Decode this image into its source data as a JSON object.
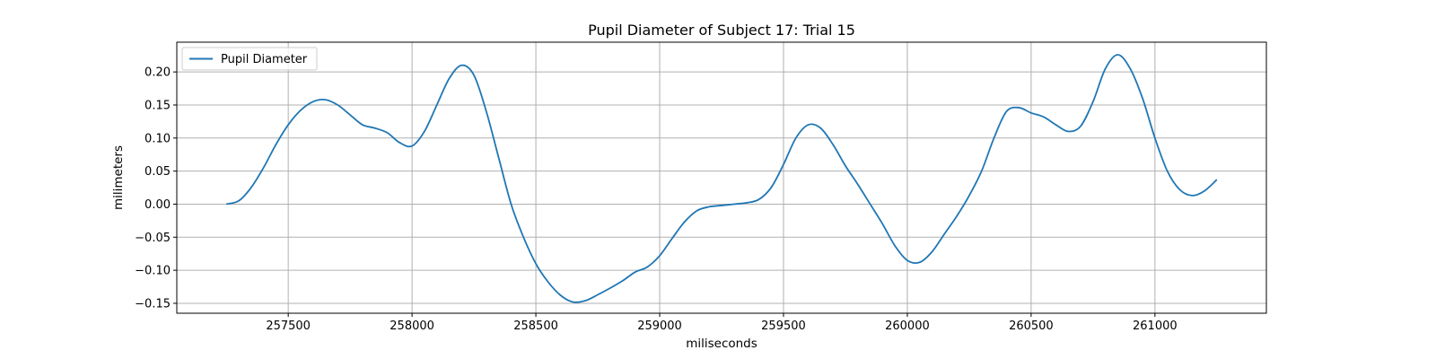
{
  "chart_data": {
    "type": "line",
    "title": "Pupil Diameter of Subject 17: Trial 15",
    "xlabel": "miliseconds",
    "ylabel": "milimeters",
    "xlim": [
      257050,
      261450
    ],
    "ylim": [
      -0.165,
      0.245
    ],
    "xticks": [
      257500,
      258000,
      258500,
      259000,
      259500,
      260000,
      260500,
      261000
    ],
    "yticks": [
      -0.15,
      -0.1,
      -0.05,
      0.0,
      0.05,
      0.1,
      0.15,
      0.2
    ],
    "ytick_labels": [
      "−0.15",
      "−0.10",
      "−0.05",
      "0.00",
      "0.05",
      "0.10",
      "0.15",
      "0.20"
    ],
    "grid": true,
    "legend_position": "upper-left",
    "series": [
      {
        "name": "Pupil Diameter",
        "color": "#1f77b4",
        "x": [
          257250,
          257300,
          257350,
          257400,
          257450,
          257500,
          257550,
          257600,
          257650,
          257700,
          257750,
          257800,
          257850,
          257900,
          257950,
          258000,
          258050,
          258100,
          258150,
          258200,
          258250,
          258300,
          258350,
          258400,
          258450,
          258500,
          258550,
          258600,
          258650,
          258700,
          258750,
          258800,
          258850,
          258900,
          258950,
          259000,
          259050,
          259100,
          259150,
          259200,
          259250,
          259300,
          259350,
          259400,
          259450,
          259500,
          259550,
          259600,
          259650,
          259700,
          259750,
          259800,
          259850,
          259900,
          259950,
          260000,
          260050,
          260100,
          260150,
          260200,
          260250,
          260300,
          260350,
          260400,
          260450,
          260500,
          260550,
          260600,
          260650,
          260700,
          260750,
          260800,
          260850,
          260900,
          260950,
          261000,
          261050,
          261100,
          261150,
          261200,
          261250
        ],
        "y": [
          0.0,
          0.005,
          0.025,
          0.055,
          0.09,
          0.12,
          0.142,
          0.155,
          0.158,
          0.15,
          0.135,
          0.12,
          0.115,
          0.108,
          0.093,
          0.088,
          0.11,
          0.15,
          0.19,
          0.21,
          0.195,
          0.14,
          0.07,
          0.0,
          -0.05,
          -0.09,
          -0.118,
          -0.138,
          -0.148,
          -0.146,
          -0.137,
          -0.127,
          -0.116,
          -0.103,
          -0.095,
          -0.078,
          -0.052,
          -0.027,
          -0.01,
          -0.004,
          -0.002,
          0.0,
          0.002,
          0.007,
          0.025,
          0.06,
          0.1,
          0.12,
          0.115,
          0.09,
          0.058,
          0.03,
          0.0,
          -0.03,
          -0.063,
          -0.085,
          -0.088,
          -0.072,
          -0.045,
          -0.018,
          0.013,
          0.05,
          0.1,
          0.14,
          0.146,
          0.138,
          0.132,
          0.12,
          0.11,
          0.118,
          0.155,
          0.205,
          0.226,
          0.205,
          0.16,
          0.1,
          0.05,
          0.022,
          0.013,
          0.02,
          0.037
        ]
      }
    ]
  }
}
